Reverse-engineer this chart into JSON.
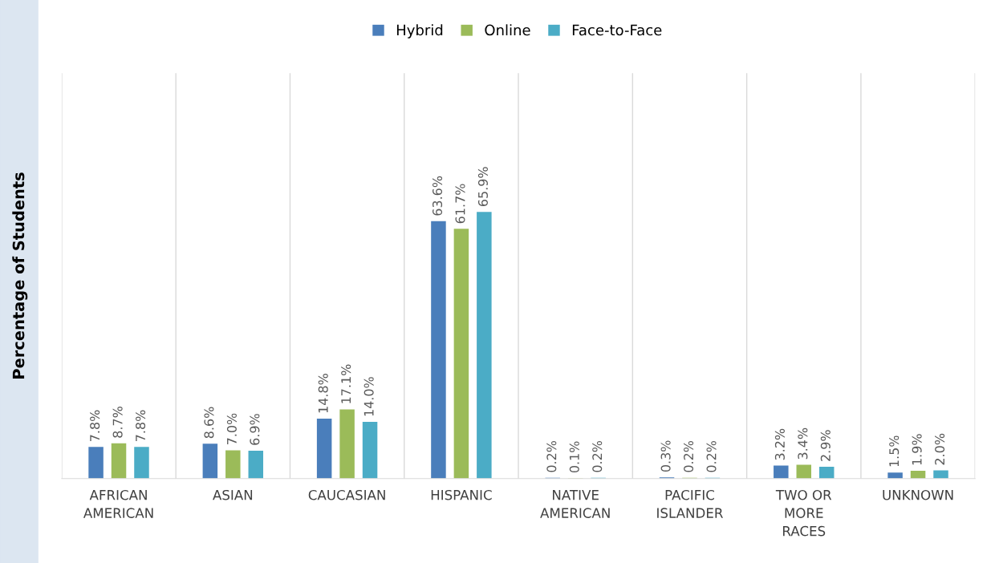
{
  "chart_data": {
    "type": "bar",
    "ylabel": "Percentage of Students",
    "categories": [
      "AFRICAN\nAMERICAN",
      "ASIAN",
      "CAUCASIAN",
      "HISPANIC",
      "NATIVE\nAMERICAN",
      "PACIFIC\nISLANDER",
      "TWO OR\nMORE\nRACES",
      "UNKNOWN"
    ],
    "series": [
      {
        "name": "Hybrid",
        "color": "#4a7ebb",
        "values": [
          7.8,
          8.6,
          14.8,
          63.6,
          0.2,
          0.3,
          3.2,
          1.5
        ],
        "value_labels": [
          "7.8%",
          "8.6%",
          "14.8%",
          "63.6%",
          "0.2%",
          "0.3%",
          "3.2%",
          "1.5%"
        ]
      },
      {
        "name": "Online",
        "color": "#9bbb59",
        "values": [
          8.7,
          7.0,
          17.1,
          61.7,
          0.1,
          0.2,
          3.4,
          1.9
        ],
        "value_labels": [
          "8.7%",
          "7.0%",
          "17.1%",
          "61.7%",
          "0.1%",
          "0.2%",
          "3.4%",
          "1.9%"
        ]
      },
      {
        "name": "Face-to-Face",
        "color": "#4bacc6",
        "values": [
          7.8,
          6.9,
          14.0,
          65.9,
          0.2,
          0.2,
          2.9,
          2.0
        ],
        "value_labels": [
          "7.8%",
          "6.9%",
          "14.0%",
          "65.9%",
          "0.2%",
          "0.2%",
          "2.9%",
          "2.0%"
        ]
      }
    ],
    "grid": "x",
    "legend": "top"
  }
}
